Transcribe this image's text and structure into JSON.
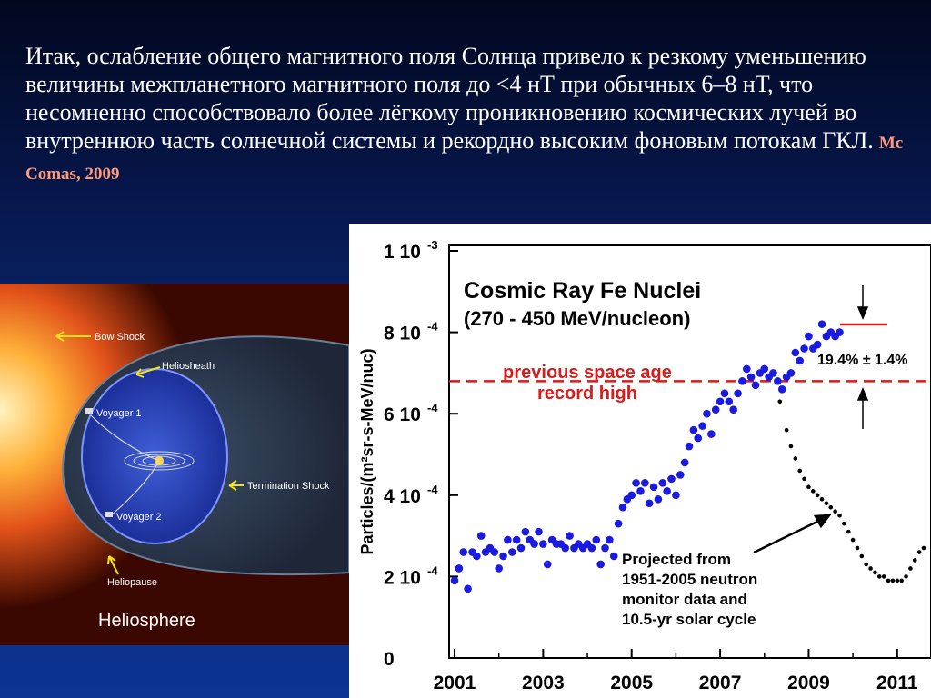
{
  "text": {
    "paragraph": "Итак, ослабление общего магнитного поля Солнца привело к резкому уменьшению величины межпланетного магнитного поля до <4 нТ при обычных 6–8 нТ, что несомненно способствовало более лёгкому проникновению космических лучей во внутреннюю часть солнечной системы и рекордно высоким фоновым потокам ГКЛ.",
    "citation": "Mc Comas, 2009"
  },
  "heliosphere": {
    "title": "Heliosphere",
    "labels": {
      "bow_shock": "Bow Shock",
      "heliosheath": "Heliosheath",
      "voyager1": "Voyager 1",
      "voyager2": "Voyager 2",
      "termination_shock": "Termination Shock",
      "heliopause": "Heliopause"
    }
  },
  "chart_data": {
    "type": "scatter",
    "title": "Cosmic Ray Fe Nuclei",
    "subtitle": "(270 - 450 MeV/nucleon)",
    "ylabel": "Particles/(m²sr-s-MeV/nuc)",
    "xlim": [
      2001,
      2011.6
    ],
    "ylim": [
      0,
      0.001
    ],
    "x_ticks": [
      "2001",
      "2003",
      "2005",
      "2007",
      "2009",
      "2011"
    ],
    "y_ticks": [
      "0",
      "2 10",
      "4 10",
      "6 10",
      "8 10",
      "1 10"
    ],
    "y_tick_exponents": [
      "",
      "-4",
      "-4",
      "-4",
      "-4",
      "-3"
    ],
    "colors": {
      "measured": "#1a1ae0",
      "projected": "#000000",
      "record": "#d81b1b"
    },
    "series": [
      {
        "values": [
          [
            2001.0,
            1.9
          ],
          [
            2001.1,
            2.2
          ],
          [
            2001.2,
            2.6
          ],
          [
            2001.3,
            1.7
          ],
          [
            2001.4,
            2.6
          ],
          [
            2001.5,
            2.5
          ],
          [
            2001.6,
            3.0
          ],
          [
            2001.7,
            2.6
          ],
          [
            2001.8,
            2.7
          ],
          [
            2001.9,
            2.6
          ],
          [
            2002.0,
            2.2
          ],
          [
            2002.1,
            2.5
          ],
          [
            2002.2,
            2.9
          ],
          [
            2002.3,
            2.6
          ],
          [
            2002.4,
            2.9
          ],
          [
            2002.5,
            2.7
          ],
          [
            2002.6,
            3.1
          ],
          [
            2002.7,
            2.9
          ],
          [
            2002.8,
            2.8
          ],
          [
            2002.9,
            3.1
          ],
          [
            2003.0,
            2.8
          ],
          [
            2003.1,
            2.3
          ],
          [
            2003.2,
            2.9
          ],
          [
            2003.3,
            2.8
          ],
          [
            2003.4,
            2.8
          ],
          [
            2003.5,
            2.7
          ],
          [
            2003.6,
            3.0
          ],
          [
            2003.7,
            2.7
          ],
          [
            2003.8,
            2.8
          ],
          [
            2003.9,
            2.7
          ],
          [
            2004.0,
            2.8
          ],
          [
            2004.1,
            2.7
          ],
          [
            2004.2,
            2.9
          ],
          [
            2004.3,
            2.3
          ],
          [
            2004.4,
            2.7
          ],
          [
            2004.5,
            2.9
          ],
          [
            2004.6,
            2.5
          ],
          [
            2004.7,
            3.3
          ],
          [
            2004.8,
            3.7
          ],
          [
            2004.9,
            3.9
          ],
          [
            2005.0,
            4.0
          ],
          [
            2005.1,
            4.3
          ],
          [
            2005.2,
            4.1
          ],
          [
            2005.3,
            4.3
          ],
          [
            2005.4,
            3.8
          ],
          [
            2005.5,
            4.2
          ],
          [
            2005.6,
            3.9
          ],
          [
            2005.7,
            4.3
          ],
          [
            2005.8,
            4.1
          ],
          [
            2005.9,
            4.4
          ],
          [
            2006.0,
            4.0
          ],
          [
            2006.1,
            4.5
          ],
          [
            2006.2,
            4.8
          ],
          [
            2006.3,
            5.2
          ],
          [
            2006.4,
            5.6
          ],
          [
            2006.5,
            5.4
          ],
          [
            2006.6,
            5.7
          ],
          [
            2006.7,
            6.0
          ],
          [
            2006.8,
            5.5
          ],
          [
            2006.9,
            6.1
          ],
          [
            2007.0,
            6.3
          ],
          [
            2007.1,
            6.5
          ],
          [
            2007.2,
            6.3
          ],
          [
            2007.3,
            6.1
          ],
          [
            2007.4,
            6.5
          ],
          [
            2007.5,
            6.8
          ],
          [
            2007.6,
            7.1
          ],
          [
            2007.7,
            6.9
          ],
          [
            2007.8,
            6.7
          ],
          [
            2007.9,
            7.0
          ],
          [
            2008.0,
            7.1
          ],
          [
            2008.1,
            6.9
          ],
          [
            2008.2,
            7.0
          ],
          [
            2008.3,
            6.8
          ],
          [
            2008.4,
            6.6
          ],
          [
            2008.5,
            6.9
          ],
          [
            2008.6,
            7.0
          ],
          [
            2008.7,
            7.5
          ],
          [
            2008.8,
            7.3
          ],
          [
            2008.9,
            7.6
          ],
          [
            2009.0,
            7.9
          ],
          [
            2009.1,
            7.6
          ],
          [
            2009.2,
            7.7
          ],
          [
            2009.3,
            8.2
          ],
          [
            2009.4,
            7.9
          ],
          [
            2009.5,
            8.0
          ],
          [
            2009.6,
            7.9
          ],
          [
            2009.7,
            8.0
          ]
        ]
      },
      {
        "values": [
          [
            2008.35,
            6.3
          ],
          [
            2008.5,
            5.6
          ],
          [
            2008.6,
            5.2
          ],
          [
            2008.7,
            4.9
          ],
          [
            2008.8,
            4.6
          ],
          [
            2008.9,
            4.4
          ],
          [
            2009.0,
            4.2
          ],
          [
            2009.1,
            4.1
          ],
          [
            2009.2,
            4.0
          ],
          [
            2009.3,
            3.9
          ],
          [
            2009.4,
            3.8
          ],
          [
            2009.5,
            3.7
          ],
          [
            2009.6,
            3.6
          ],
          [
            2009.7,
            3.5
          ],
          [
            2009.8,
            3.3
          ],
          [
            2009.9,
            3.1
          ],
          [
            2010.0,
            2.9
          ],
          [
            2010.1,
            2.7
          ],
          [
            2010.2,
            2.5
          ],
          [
            2010.3,
            2.3
          ],
          [
            2010.4,
            2.2
          ],
          [
            2010.5,
            2.1
          ],
          [
            2010.6,
            2.0
          ],
          [
            2010.7,
            2.0
          ],
          [
            2010.8,
            1.9
          ],
          [
            2010.9,
            1.9
          ],
          [
            2011.0,
            1.9
          ],
          [
            2011.1,
            1.9
          ],
          [
            2011.2,
            2.0
          ],
          [
            2011.3,
            2.2
          ],
          [
            2011.4,
            2.4
          ],
          [
            2011.5,
            2.6
          ],
          [
            2011.6,
            2.7
          ]
        ]
      }
    ],
    "record_level": 6.8,
    "record_label_line1": "previous space age",
    "record_label_line2": "record high",
    "increase_label": "19.4% ± 1.4%",
    "projection_annotation": [
      "Projected from",
      "1951-2005 neutron",
      "monitor data and",
      "10.5-yr solar cycle"
    ]
  }
}
